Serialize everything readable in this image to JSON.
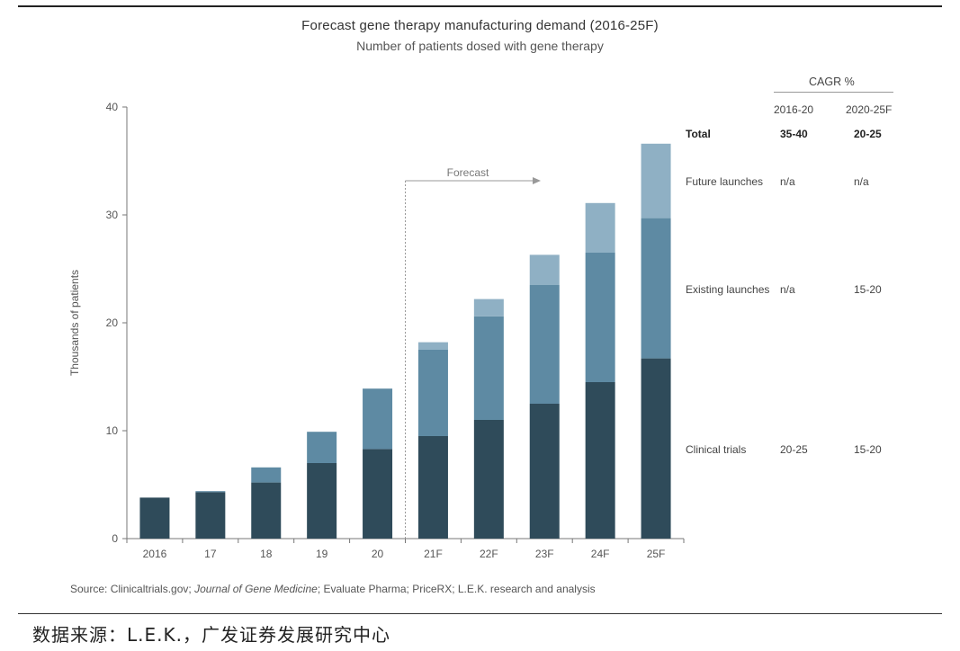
{
  "title": "Forecast gene therapy manufacturing demand (2016-25F)",
  "subtitle": "Number of patients dosed with gene therapy",
  "forecast_label": "Forecast",
  "source": {
    "prefix": "Source: Clinicaltrials.gov; ",
    "journal": "Journal of Gene Medicine",
    "suffix": "; Evaluate Pharma; PriceRX; L.E.K. research and analysis"
  },
  "footer": "数据来源：L.E.K.，广发证券发展研究中心",
  "cagr_table": {
    "header": "CAGR %",
    "col1": "2016-20",
    "col2": "2020-25F",
    "rows": [
      {
        "label": "Total",
        "v1": "35-40",
        "v2": "20-25"
      },
      {
        "label": "Future launches",
        "v1": "n/a",
        "v2": "n/a"
      },
      {
        "label": "Existing launches",
        "v1": "n/a",
        "v2": "15-20"
      },
      {
        "label": "Clinical trials",
        "v1": "20-25",
        "v2": "15-20"
      }
    ]
  },
  "chart_data": {
    "type": "bar",
    "stacked": true,
    "title": "Forecast gene therapy manufacturing demand (2016-25F)",
    "subtitle": "Number of patients dosed with gene therapy",
    "xlabel": "",
    "ylabel": "Thousands of patients",
    "ylim": [
      0,
      40
    ],
    "yticks": [
      0,
      10,
      20,
      30,
      40
    ],
    "categories": [
      "2016",
      "17",
      "18",
      "19",
      "20",
      "21F",
      "22F",
      "23F",
      "24F",
      "25F"
    ],
    "series": [
      {
        "name": "Clinical trials",
        "color": "#2f4b5a",
        "values": [
          3.8,
          4.3,
          5.2,
          7.0,
          8.3,
          9.5,
          11.0,
          12.5,
          14.5,
          16.7
        ]
      },
      {
        "name": "Existing launches",
        "color": "#5e8aa3",
        "values": [
          0,
          0.1,
          1.4,
          2.9,
          5.6,
          8.0,
          9.6,
          11.0,
          12.0,
          13.0
        ]
      },
      {
        "name": "Future launches",
        "color": "#8fb0c4",
        "values": [
          0,
          0,
          0,
          0,
          0,
          0.7,
          1.6,
          2.8,
          4.6,
          6.9
        ]
      }
    ],
    "forecast_start_index": 5,
    "grid": false,
    "legend": "right"
  }
}
